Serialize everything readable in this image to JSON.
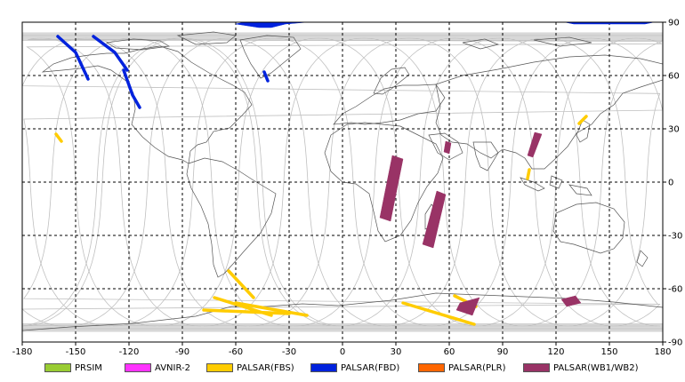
{
  "chart_data": {
    "type": "map",
    "projection": "equirectangular",
    "xlim": [
      -180,
      180
    ],
    "ylim": [
      -90,
      90
    ],
    "x_ticks": [
      "-180",
      "-150",
      "-120",
      "-90",
      "-60",
      "-30",
      "0",
      "30",
      "60",
      "90",
      "120",
      "150",
      "180"
    ],
    "y_ticks": [
      "90",
      "60",
      "30",
      "0",
      "-30",
      "-60",
      "-90"
    ],
    "grid": true,
    "legend": [
      {
        "label": "PRSIM",
        "color": "#99cc33"
      },
      {
        "label": "AVNIR-2",
        "color": "#ff33ff"
      },
      {
        "label": "PALSAR(FBS)",
        "color": "#ffcc00"
      },
      {
        "label": "PALSAR(FBD)",
        "color": "#0022dd"
      },
      {
        "label": "PALSAR(PLR)",
        "color": "#ff6600"
      },
      {
        "label": "PALSAR(WB1/WB2)",
        "color": "#993366"
      }
    ],
    "swaths": [
      {
        "sensor": "PALSAR(FBD)",
        "points": [
          [
            -160,
            82
          ],
          [
            -150,
            73
          ],
          [
            -143,
            58
          ]
        ]
      },
      {
        "sensor": "PALSAR(FBD)",
        "points": [
          [
            -140,
            82
          ],
          [
            -128,
            73
          ],
          [
            -121,
            63
          ]
        ]
      },
      {
        "sensor": "PALSAR(FBD)",
        "points": [
          [
            -123,
            63
          ],
          [
            -118,
            49
          ],
          [
            -114,
            42
          ]
        ]
      },
      {
        "sensor": "PALSAR(FBD)",
        "points": [
          [
            -44,
            62
          ],
          [
            -42,
            57
          ]
        ]
      },
      {
        "sensor": "PALSAR(FBS)",
        "points": [
          [
            -161,
            27
          ],
          [
            -158,
            23
          ]
        ]
      },
      {
        "sensor": "PALSAR(FBS)",
        "points": [
          [
            -64,
            -50
          ],
          [
            -50,
            -65
          ]
        ]
      },
      {
        "sensor": "PALSAR(FBS)",
        "points": [
          [
            -72,
            -65
          ],
          [
            -40,
            -75
          ]
        ]
      },
      {
        "sensor": "PALSAR(FBS)",
        "points": [
          [
            -60,
            -68
          ],
          [
            -20,
            -75
          ]
        ]
      },
      {
        "sensor": "PALSAR(FBS)",
        "points": [
          [
            -78,
            -72
          ],
          [
            -30,
            -74
          ]
        ]
      },
      {
        "sensor": "PALSAR(FBS)",
        "points": [
          [
            34,
            -68
          ],
          [
            74,
            -80
          ]
        ]
      },
      {
        "sensor": "PALSAR(FBS)",
        "points": [
          [
            63,
            -64
          ],
          [
            75,
            -70
          ]
        ]
      },
      {
        "sensor": "PALSAR(FBS)",
        "points": [
          [
            105,
            7
          ],
          [
            104,
            2
          ]
        ]
      },
      {
        "sensor": "PALSAR(FBS)",
        "points": [
          [
            137,
            37
          ],
          [
            133,
            33
          ]
        ]
      },
      {
        "sensor": "PALSAR(WB1/WB2)",
        "polygon": [
          [
            28,
            15
          ],
          [
            34,
            13
          ],
          [
            27,
            -22
          ],
          [
            21,
            -20
          ]
        ]
      },
      {
        "sensor": "PALSAR(WB1/WB2)",
        "polygon": [
          [
            53,
            -5
          ],
          [
            58,
            -7
          ],
          [
            51,
            -37
          ],
          [
            45,
            -35
          ]
        ]
      },
      {
        "sensor": "PALSAR(WB1/WB2)",
        "polygon": [
          [
            108,
            28
          ],
          [
            112,
            27
          ],
          [
            107,
            14
          ],
          [
            104,
            15
          ]
        ]
      },
      {
        "sensor": "PALSAR(WB1/WB2)",
        "polygon": [
          [
            58,
            23
          ],
          [
            61,
            22
          ],
          [
            60,
            16
          ],
          [
            57,
            17
          ]
        ]
      },
      {
        "sensor": "PALSAR(WB1/WB2)",
        "polygon": [
          [
            66,
            -68
          ],
          [
            77,
            -65
          ],
          [
            73,
            -75
          ],
          [
            64,
            -72
          ]
        ]
      },
      {
        "sensor": "PALSAR(WB1/WB2)",
        "polygon": [
          [
            123,
            -66
          ],
          [
            131,
            -64
          ],
          [
            134,
            -68
          ],
          [
            126,
            -70
          ]
        ]
      },
      {
        "sensor": "PALSAR(FBD)",
        "polygon": [
          [
            -127,
            90
          ],
          [
            -55,
            90
          ],
          [
            -60,
            89
          ],
          [
            -47,
            87
          ],
          [
            -40,
            87
          ],
          [
            -32,
            89
          ],
          [
            -20,
            90
          ]
        ]
      },
      {
        "sensor": "PALSAR(FBD)",
        "polygon": [
          [
            125,
            90
          ],
          [
            175,
            90
          ],
          [
            170,
            89
          ],
          [
            130,
            89
          ]
        ]
      }
    ]
  }
}
